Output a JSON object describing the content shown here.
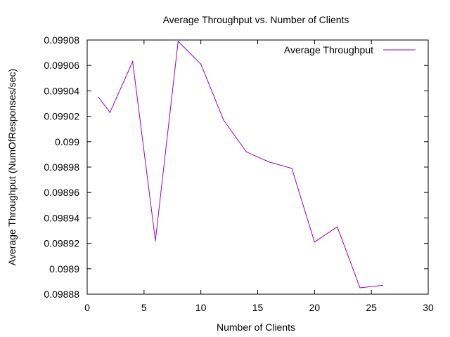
{
  "chart_data": {
    "type": "line",
    "title": "Average Throughput vs. Number of Clients",
    "xlabel": "Number of Clients",
    "ylabel": "Average Throughput (NumOfResponses/sec)",
    "xlim": [
      0,
      30
    ],
    "ylim": [
      0.09888,
      0.09908
    ],
    "x_ticks": [
      0,
      5,
      10,
      15,
      20,
      25,
      30
    ],
    "x_tick_labels": [
      "0",
      "5",
      "10",
      "15",
      "20",
      "25",
      "30"
    ],
    "y_ticks": [
      0.09888,
      0.0989,
      0.09892,
      0.09894,
      0.09896,
      0.09898,
      0.099,
      0.09902,
      0.09904,
      0.09906,
      0.09908
    ],
    "y_tick_labels": [
      "0.09888",
      "0.0989",
      "0.09892",
      "0.09894",
      "0.09896",
      "0.09898",
      "0.099",
      "0.09902",
      "0.09904",
      "0.09906",
      "0.09908"
    ],
    "grid": false,
    "legend_position": "top-right",
    "series": [
      {
        "name": "Average Throughput",
        "color": "#9400d3",
        "x": [
          1,
          2,
          4,
          6,
          8,
          10,
          12,
          14,
          16,
          18,
          20,
          22,
          24,
          26
        ],
        "y": [
          0.099035,
          0.099023,
          0.099063,
          0.098922,
          0.099079,
          0.099061,
          0.099017,
          0.098992,
          0.098984,
          0.098979,
          0.098921,
          0.098933,
          0.098885,
          0.098887
        ]
      }
    ]
  }
}
